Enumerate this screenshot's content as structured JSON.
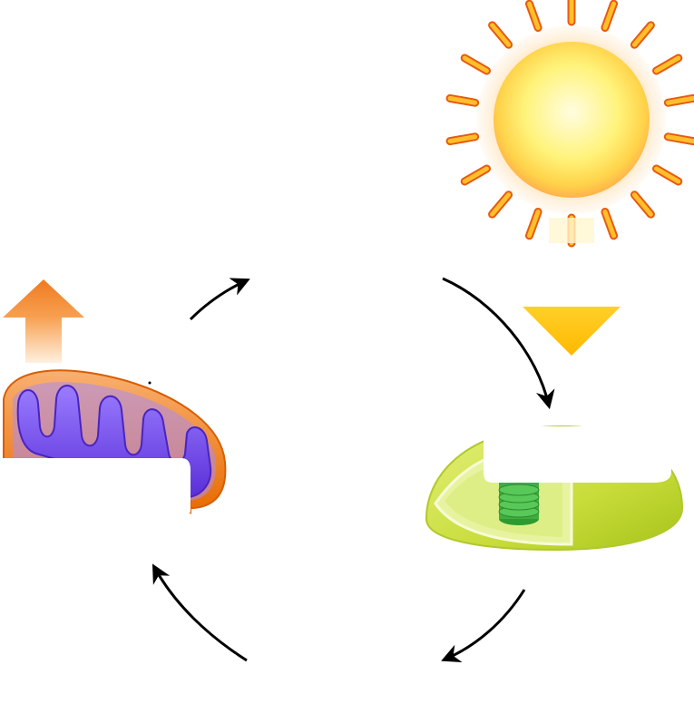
{
  "diagram": {
    "type": "cycle",
    "description_labels": [],
    "nodes": [
      {
        "id": "sun",
        "icon": "sun-icon"
      },
      {
        "id": "chloroplast",
        "icon": "chloroplast-icon"
      },
      {
        "id": "mitochondrion",
        "icon": "mitochondrion-icon"
      }
    ],
    "energy_arrows": [
      {
        "id": "light-in",
        "direction": "down",
        "color": "#ffc400"
      },
      {
        "id": "energy-out",
        "direction": "up",
        "color": "#f07020"
      }
    ],
    "cycle_arrows": [
      {
        "id": "top-left",
        "direction": "clockwise"
      },
      {
        "id": "top-right",
        "direction": "clockwise"
      },
      {
        "id": "bottom-right",
        "direction": "clockwise"
      },
      {
        "id": "bottom-left",
        "direction": "clockwise"
      }
    ],
    "colors": {
      "sun_core": "#fff59a",
      "sun_ray": "#ff9d1c",
      "chloroplast": "#c9e04a",
      "grana": "#3aa93a",
      "mitochondrion_outer": "#f07a10",
      "cristae": "#7d4cf0",
      "arrow": "#000000"
    }
  }
}
